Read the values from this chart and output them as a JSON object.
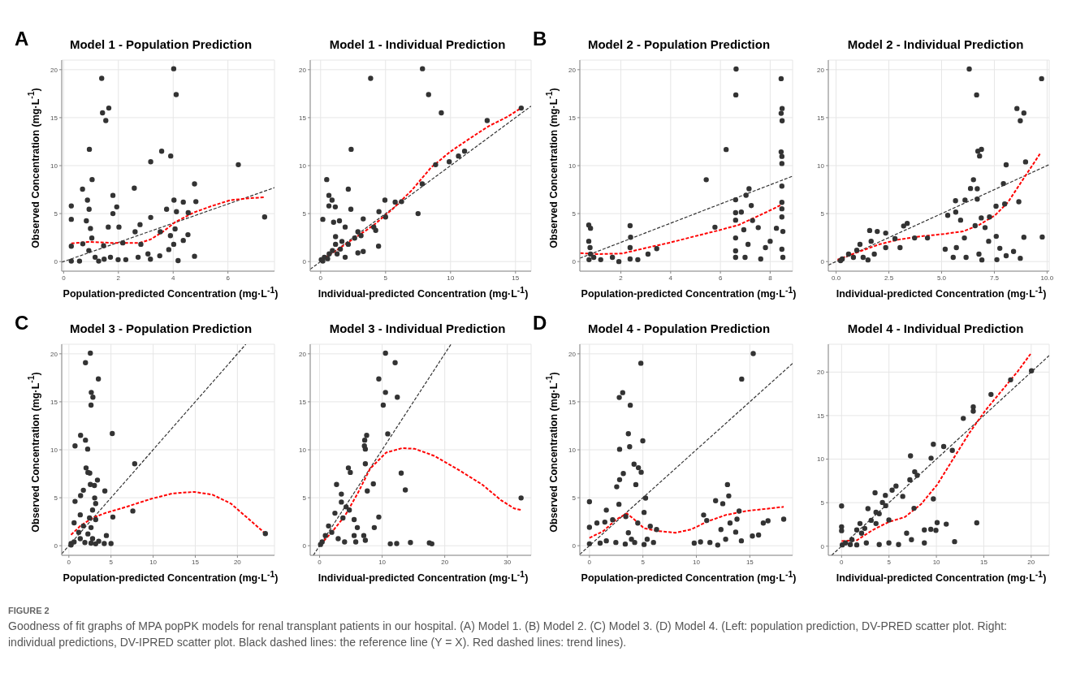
{
  "chart_data": [
    {
      "type": "scatter",
      "title": "Model 1 - Population Prediction",
      "xlabel": "Population-predicted Concentration (mg·L$^{-1}$)",
      "ylabel": "Observed Concentration (mg·L$^{-1}$)",
      "annotations": [
        "A"
      ],
      "xlim": [
        -0.07,
        7.7
      ],
      "ylim": [
        -1,
        21
      ],
      "xticks": [
        0,
        2,
        4,
        6
      ],
      "yticks": [
        0,
        5,
        10,
        15,
        20
      ],
      "grid": true,
      "series": [
        {
          "type": "scatter",
          "marker": "circle",
          "color": "#333333",
          "x": [
            1.39,
            4.02,
            4.11,
            1.65,
            1.42,
            1.54,
            0.94,
            3.58,
            3.91,
            3.18,
            6.38,
            1.04,
            0.69,
            2.58,
            4.78,
            0.87,
            1.8,
            4.03,
            4.37,
            4.83,
            0.28,
            0.93,
            1.94,
            3.76,
            4.12,
            3.18,
            7.34,
            0.28,
            0.83,
            1.8,
            4.55,
            1.63,
            2.79,
            3.53,
            4.07,
            0.98,
            2.02,
            2.61,
            4.54,
            3.9,
            4.37,
            1.03,
            0.28,
            0.7,
            1.46,
            2.16,
            2.82,
            3.08,
            3.84,
            4.02,
            4.78,
            0.92,
            1.15,
            1.48,
            1.71,
            1.99,
            2.27,
            2.72,
            3.17,
            0.58,
            0.28,
            1.28,
            4.18,
            3.51
          ],
          "values": [
            19.1,
            20.1,
            17.4,
            16.0,
            15.5,
            14.7,
            11.7,
            11.5,
            11.0,
            10.4,
            10.1,
            8.55,
            7.55,
            7.65,
            8.1,
            6.4,
            6.9,
            6.4,
            6.2,
            6.25,
            5.8,
            5.45,
            5.7,
            5.45,
            5.2,
            4.6,
            4.65,
            4.4,
            4.25,
            5.0,
            5.1,
            3.6,
            3.85,
            3.1,
            3.4,
            3.45,
            3.6,
            3.1,
            2.8,
            2.7,
            2.2,
            2.45,
            1.6,
            1.85,
            1.65,
            1.95,
            1.8,
            0.8,
            1.25,
            1.8,
            0.55,
            1.15,
            0.45,
            0.25,
            0.45,
            0.2,
            0.2,
            0.45,
            0.25,
            0.05,
            0.05,
            0.05,
            0.1,
            0.6
          ]
        },
        {
          "type": "line",
          "line_style": "dashed",
          "color": "#333333",
          "x": [
            -0.07,
            7.7
          ],
          "values": [
            -0.07,
            7.7
          ]
        },
        {
          "type": "line",
          "line_style": "dashed",
          "color": "#ff0000",
          "x": [
            0.28,
            0.92,
            1.71,
            2.27,
            2.78,
            3.17,
            3.62,
            4.07,
            4.74,
            5.42,
            6.09,
            6.76,
            7.33
          ],
          "values": [
            1.9,
            2.05,
            1.95,
            1.95,
            1.95,
            2.3,
            3.1,
            4.1,
            5.1,
            5.8,
            6.4,
            6.6,
            6.7
          ]
        }
      ]
    },
    {
      "type": "scatter",
      "title": "Model 1 - Individual Prediction",
      "xlabel": "Individual-predicted Concentration (mg·L$^{-1}$)",
      "xlim": [
        -0.8,
        16.2
      ],
      "ylim": [
        -1,
        21
      ],
      "xticks": [
        0,
        5,
        10,
        15
      ],
      "yticks": [
        0,
        5,
        10,
        15,
        20
      ],
      "grid": true,
      "series": [
        {
          "type": "scatter",
          "marker": "circle",
          "color": "#333333",
          "x": [
            7.84,
            3.85,
            8.31,
            9.29,
            15.44,
            12.82,
            2.35,
            11.08,
            10.61,
            9.9,
            8.85,
            0.47,
            2.13,
            7.82,
            0.64,
            0.88,
            4.95,
            5.74,
            6.23,
            0.64,
            1.13,
            2.33,
            4.49,
            7.5,
            5.0,
            3.28,
            0.17,
            1.45,
            1.0,
            4.09,
            4.24,
            1.89,
            2.87,
            3.11,
            4.46,
            1.15,
            1.64,
            2.13,
            2.87,
            3.28,
            1.89,
            1.15,
            0.91,
            0.66,
            0.29,
            1.27,
            0.17,
            0.54,
            0.05,
            1.52,
            2.62
          ],
          "values": [
            20.1,
            19.1,
            17.4,
            15.5,
            16.0,
            14.7,
            11.7,
            11.5,
            11.0,
            10.4,
            10.1,
            8.55,
            7.55,
            8.1,
            6.9,
            6.4,
            6.4,
            6.2,
            6.25,
            5.8,
            5.7,
            5.45,
            5.2,
            5.0,
            4.65,
            4.45,
            4.4,
            4.25,
            4.1,
            3.6,
            3.25,
            3.6,
            3.1,
            2.7,
            1.6,
            2.6,
            2.1,
            1.8,
            0.9,
            1.05,
            0.45,
            1.8,
            1.15,
            0.8,
            0.45,
            0.8,
            0.05,
            0.3,
            0.2,
            1.3,
            2.45
          ]
        },
        {
          "type": "line",
          "line_style": "dashed",
          "color": "#333333",
          "x": [
            -0.8,
            16.2
          ],
          "values": [
            -0.8,
            16.2
          ]
        },
        {
          "type": "line",
          "line_style": "dashed",
          "color": "#ff0000",
          "x": [
            0,
            1.15,
            2.62,
            4.09,
            5.56,
            7.03,
            8.5,
            9.98,
            11.45,
            12.92,
            14.39,
            15.37
          ],
          "values": [
            0.13,
            1.1,
            2.45,
            3.8,
            5.5,
            7.45,
            9.8,
            11.45,
            12.8,
            14.1,
            15.1,
            15.95
          ]
        }
      ]
    },
    {
      "type": "scatter",
      "title": "Model 2 - Population Prediction",
      "xlabel": "Population-predicted Concentration (mg·L$^{-1}$)",
      "ylabel": "Observed Concentration (mg·L$^{-1}$)",
      "annotations": [
        "B"
      ],
      "xlim": [
        0.35,
        8.9
      ],
      "ylim": [
        -1,
        21
      ],
      "xticks": [
        2,
        4,
        6,
        8
      ],
      "yticks": [
        0,
        5,
        10,
        15,
        20
      ],
      "grid": true,
      "series": [
        {
          "type": "scatter",
          "marker": "circle",
          "color": "#333333",
          "x": [
            6.63,
            6.62,
            8.44,
            8.48,
            8.44,
            8.48,
            6.23,
            8.44,
            8.47,
            8.47,
            5.43,
            8.47,
            7.15,
            7.03,
            6.61,
            8.47,
            7.24,
            6.61,
            6.84,
            8.47,
            8.47,
            6.61,
            7.29,
            5.78,
            7.52,
            8.25,
            8.51,
            6.94,
            6.61,
            7.11,
            7.81,
            8.0,
            6.61,
            6.99,
            6.61,
            7.62,
            8.51,
            8.47,
            0.71,
            0.78,
            0.71,
            0.76,
            0.78,
            0.72,
            0.91,
            1.19,
            1.66,
            1.92,
            2.37,
            2.39,
            2.37,
            2.37,
            2.68,
            3.09,
            3.44
          ],
          "values": [
            20.07,
            17.37,
            19.06,
            15.95,
            15.45,
            14.67,
            11.68,
            11.43,
            10.96,
            10.22,
            8.53,
            7.86,
            7.59,
            6.91,
            6.44,
            6.17,
            5.83,
            5.09,
            5.16,
            5.5,
            4.65,
            4.32,
            4.28,
            3.58,
            3.54,
            3.47,
            3.14,
            3.31,
            2.46,
            1.79,
            1.45,
            2.12,
            1.11,
            0.44,
            0.44,
            0.27,
            0.44,
            1.28,
            3.81,
            3.47,
            2.12,
            1.45,
            0.78,
            0.2,
            0.44,
            0.2,
            0.44,
            0.0,
            3.74,
            2.53,
            1.45,
            0.27,
            0.2,
            0.78,
            1.35
          ]
        },
        {
          "type": "line",
          "line_style": "dashed",
          "color": "#333333",
          "x": [
            0.35,
            8.9
          ],
          "values": [
            0.35,
            8.9
          ]
        },
        {
          "type": "line",
          "line_style": "dashed",
          "color": "#ff0000",
          "x": [
            0.37,
            1.04,
            2.05,
            3.06,
            3.95,
            4.96,
            5.85,
            6.73,
            7.49,
            8.13,
            8.47
          ],
          "values": [
            0.88,
            0.78,
            0.84,
            1.45,
            1.96,
            2.63,
            3.2,
            3.81,
            4.72,
            5.5,
            5.94
          ]
        }
      ]
    },
    {
      "type": "scatter",
      "title": "Model 2 - Individual Prediction",
      "xlabel": "Individual-predicted Concentration (mg·L$^{-1}$)",
      "xlim": [
        -0.37,
        10.1
      ],
      "ylim": [
        -1,
        21
      ],
      "xticks": [
        {
          "value": 0,
          "label": "0.0"
        },
        {
          "value": 2.5,
          "label": "2.5"
        },
        {
          "value": 5,
          "label": "5.0"
        },
        {
          "value": 7.5,
          "label": "7.5"
        },
        {
          "value": 10,
          "label": "10.0"
        }
      ],
      "yticks": [
        0,
        5,
        10,
        15,
        20
      ],
      "grid": true,
      "series": [
        {
          "type": "scatter",
          "marker": "circle",
          "color": "#333333",
          "x": [
            6.31,
            9.74,
            6.66,
            8.57,
            8.9,
            8.73,
            6.72,
            6.89,
            6.8,
            8.98,
            8.06,
            6.51,
            6.37,
            6.69,
            7.93,
            8.66,
            6.11,
            5.66,
            6.69,
            7.58,
            7.99,
            5.67,
            5.9,
            6.88,
            7.27,
            5.29,
            6.59,
            3.37,
            3.2,
            7.06,
            7.59,
            8.9,
            9.77,
            7.23,
            7.76,
            8.06,
            8.41,
            8.73,
            6.08,
            5.7,
            6.16,
            5.55,
            6.91,
            6.77,
            7.62,
            5.17,
            4.33,
            3.72,
            2.79,
            3.03,
            2.35,
            1.95,
            1.59,
            1.66,
            1.13,
            0.98,
            1.28,
            1.51,
            1.81,
            2.35,
            0.59,
            0.29,
            0.21,
            0.82
          ],
          "values": [
            20.07,
            19.06,
            17.37,
            15.95,
            15.48,
            14.67,
            11.5,
            11.7,
            11.0,
            10.39,
            10.08,
            8.53,
            7.62,
            7.59,
            8.13,
            6.24,
            6.41,
            6.34,
            6.51,
            5.77,
            6.0,
            5.16,
            4.32,
            4.55,
            4.65,
            4.82,
            3.74,
            3.98,
            3.71,
            3.54,
            2.63,
            2.53,
            2.56,
            2.12,
            1.38,
            0.61,
            1.05,
            0.34,
            2.46,
            1.45,
            0.44,
            0.44,
            0.17,
            0.78,
            0.2,
            1.28,
            2.46,
            2.46,
            2.39,
            1.45,
            2.97,
            3.14,
            3.24,
            2.12,
            1.79,
            1.18,
            0.44,
            0.17,
            0.78,
            1.45,
            0.78,
            0.27,
            0.1,
            0.44
          ]
        },
        {
          "type": "line",
          "line_style": "dashed",
          "color": "#333333",
          "x": [
            -0.37,
            10.1
          ],
          "values": [
            -0.37,
            10.1
          ]
        },
        {
          "type": "line",
          "line_style": "dashed",
          "color": "#ff0000",
          "x": [
            0.06,
            0.98,
            2.04,
            2.96,
            4.02,
            5.09,
            6.01,
            6.77,
            7.53,
            8.14,
            8.75,
            9.36,
            9.66
          ],
          "values": [
            0.2,
            0.94,
            1.79,
            2.29,
            2.63,
            2.87,
            3.14,
            3.81,
            4.82,
            6.17,
            8.2,
            10.22,
            11.23
          ]
        }
      ]
    },
    {
      "type": "scatter",
      "title": "Model 3 - Population Prediction",
      "xlabel": "Population-predicted Concentration (mg·L$^{-1}$)",
      "ylabel": "Observed Concentration (mg·L$^{-1}$)",
      "annotations": [
        "C"
      ],
      "xlim": [
        -0.85,
        24.4
      ],
      "ylim": [
        -1,
        21
      ],
      "xticks": [
        0,
        5,
        10,
        15,
        20
      ],
      "yticks": [
        0,
        5,
        10,
        15,
        20
      ],
      "grid": true,
      "series": [
        {
          "type": "scatter",
          "marker": "circle",
          "color": "#333333",
          "x": [
            2.55,
            1.97,
            3.5,
            2.66,
            2.85,
            2.63,
            5.15,
            1.39,
            1.97,
            0.73,
            2.23,
            7.81,
            2.04,
            2.26,
            2.48,
            3.39,
            2.55,
            3.03,
            4.27,
            1.72,
            1.39,
            3.06,
            0.73,
            3.18,
            7.59,
            5.22,
            2.81,
            1.35,
            2.45,
            3.18,
            0.62,
            1.72,
            2.63,
            1.17,
            2.26,
            4.45,
            1.35,
            2.81,
            3.54,
            4.2,
            5.0,
            0.26,
            0.62,
            1.9,
            2.63,
            3.18,
            23.32,
            0.26
          ],
          "values": [
            20.07,
            19.07,
            17.38,
            15.98,
            15.48,
            14.65,
            11.69,
            11.5,
            11.0,
            10.4,
            10.07,
            8.54,
            8.11,
            7.64,
            7.57,
            6.84,
            6.38,
            6.28,
            5.71,
            5.78,
            5.22,
            4.98,
            4.62,
            4.39,
            3.62,
            2.99,
            3.72,
            3.22,
            2.89,
            2.72,
            2.39,
            2.06,
            1.89,
            1.4,
            1.23,
            1.06,
            0.73,
            0.73,
            0.47,
            0.23,
            0.23,
            0.23,
            0.4,
            0.33,
            0.27,
            0.2,
            1.26,
            0.07
          ]
        },
        {
          "type": "line",
          "line_style": "dashed",
          "color": "#333333",
          "x": [
            -0.85,
            21
          ],
          "values": [
            -0.85,
            21
          ]
        },
        {
          "type": "line",
          "line_style": "dashed",
          "color": "#ff0000",
          "x": [
            0.26,
            1.35,
            2.81,
            4.27,
            6.82,
            9.74,
            12.3,
            14.85,
            17.04,
            19.23,
            21.42,
            23.32
          ],
          "values": [
            1.13,
            2.06,
            2.89,
            3.39,
            4.05,
            4.88,
            5.45,
            5.61,
            5.32,
            4.39,
            2.72,
            1.26
          ]
        }
      ]
    },
    {
      "type": "scatter",
      "title": "Model 3 - Individual Prediction",
      "xlabel": "Individual-predicted Concentration (mg·L$^{-1}$)",
      "xlim": [
        -1.5,
        33.8
      ],
      "ylim": [
        -1,
        21
      ],
      "xticks": [
        0,
        10,
        20,
        30
      ],
      "yticks": [
        0,
        5,
        10,
        15,
        20
      ],
      "grid": true,
      "series": [
        {
          "type": "scatter",
          "marker": "circle",
          "color": "#333333",
          "x": [
            10.53,
            12.07,
            9.46,
            10.53,
            12.42,
            10.17,
            10.89,
            7.52,
            7.21,
            7.16,
            7.31,
            7.31,
            4.6,
            4.91,
            13.04,
            13.7,
            8.59,
            7.62,
            32.2,
            9.46,
            8.74,
            7.06,
            7.31,
            11.3,
            12.32,
            14.52,
            17.54,
            17.94,
            5.78,
            3.99,
            5.52,
            6.03,
            5.52,
            4.24,
            3.48,
            2.71,
            3.48,
            2.45,
            1.43,
            1.94,
            0.92,
            0.41,
            0.15,
            2.97,
            4.75,
            3.73
          ],
          "values": [
            20.07,
            19.07,
            17.38,
            15.98,
            15.48,
            14.65,
            11.66,
            11.5,
            11.0,
            10.4,
            10.07,
            8.54,
            8.11,
            7.64,
            7.57,
            5.81,
            6.45,
            5.71,
            4.98,
            2.99,
            1.89,
            1.06,
            0.56,
            0.2,
            0.23,
            0.33,
            0.3,
            0.2,
            0.4,
            0.4,
            1.06,
            1.89,
            2.72,
            4.05,
            5.38,
            6.38,
            4.55,
            3.39,
            2.06,
            1.4,
            1.06,
            0.4,
            0.13,
            0.73,
            3.72,
            2.89
          ]
        },
        {
          "type": "line",
          "line_style": "dashed",
          "color": "#333333",
          "x": [
            -1,
            21
          ],
          "values": [
            -1,
            21
          ]
        },
        {
          "type": "line",
          "line_style": "dashed",
          "color": "#ff0000",
          "x": [
            0.15,
            1.94,
            3.99,
            6.03,
            8.08,
            10.63,
            13.19,
            15.23,
            18.3,
            21.88,
            25.97,
            29.04,
            31.08,
            32.21
          ],
          "values": [
            0.13,
            1.4,
            3.06,
            5.38,
            8.04,
            9.7,
            10.17,
            10.1,
            9.37,
            8.04,
            6.38,
            4.72,
            3.89,
            3.72
          ]
        }
      ]
    },
    {
      "type": "scatter",
      "title": "Model 4 - Population Prediction",
      "xlabel": "Population-predicted Concentration (mg·L$^{-1}$)",
      "ylabel": "Observed Concentration (mg·L$^{-1}$)",
      "annotations": [
        "D"
      ],
      "xlim": [
        -0.9,
        19
      ],
      "ylim": [
        -1,
        21
      ],
      "xticks": [
        0,
        5,
        10,
        15
      ],
      "yticks": [
        0,
        5,
        10,
        15,
        20
      ],
      "grid": true,
      "series": [
        {
          "type": "scatter",
          "marker": "circle",
          "color": "#333333",
          "x": [
            15.32,
            4.81,
            14.24,
            3.11,
            2.79,
            3.82,
            3.64,
            4.99,
            2.82,
            3.76,
            4.17,
            4.58,
            4.84,
            3.17,
            2.82,
            2.55,
            4.34,
            12.91,
            13.03,
            0,
            2.76,
            5.25,
            11.8,
            12.47,
            1.58,
            5.11,
            10.68,
            14.0,
            13.8,
            13.15,
            10.97,
            16.26,
            16.7,
            18.17,
            0,
            0.7,
            1.44,
            2.17,
            3.4,
            4.52,
            5.69,
            6.28,
            12.3,
            13.68,
            14.21,
            12.74,
            15.24,
            15.82,
            9.8,
            11.27,
            12.0,
            10.39,
            0,
            1.0,
            1.58,
            2.47,
            3.35,
            4.23,
            5.11,
            5.99,
            3.93,
            5.4,
            3.64
          ],
          "values": [
            20.03,
            19.02,
            17.37,
            15.95,
            15.45,
            14.64,
            11.67,
            10.93,
            10.05,
            10.32,
            8.5,
            8.13,
            7.66,
            7.52,
            6.88,
            6.14,
            6.37,
            6.37,
            5.19,
            4.59,
            4.32,
            4.96,
            4.69,
            4.38,
            3.71,
            3.47,
            3.2,
            3.61,
            2.77,
            2.36,
            2.63,
            2.36,
            2.6,
            2.77,
            1.92,
            2.36,
            2.46,
            2.7,
            3.04,
            2.36,
            2.02,
            1.69,
            1.69,
            1.42,
            0.51,
            0.67,
            1.01,
            1.11,
            0.27,
            0.34,
            0.07,
            0.4,
            0.2,
            0.27,
            0.51,
            0.34,
            0.17,
            0.34,
            0.13,
            0.34,
            0.67,
            0.67,
            1.35
          ]
        },
        {
          "type": "line",
          "line_style": "dashed",
          "color": "#333333",
          "x": [
            -0.9,
            19
          ],
          "values": [
            -0.9,
            19
          ]
        },
        {
          "type": "line",
          "line_style": "dashed",
          "color": "#ff0000",
          "x": [
            0,
            1.29,
            2.47,
            3.49,
            4.23,
            5.11,
            6.28,
            8.04,
            9.51,
            10.98,
            12.74,
            14.79,
            16.85,
            18.17
          ],
          "values": [
            0.81,
            1.52,
            2.7,
            3.37,
            2.7,
            1.82,
            1.55,
            1.35,
            1.69,
            2.5,
            3.2,
            3.64,
            3.88,
            4.05
          ]
        }
      ]
    },
    {
      "type": "scatter",
      "title": "Model 4 - Individual Prediction",
      "xlabel": "Individual-predicted Concentration (mg·L$^{-1}$)",
      "xlim": [
        -1.4,
        21.9
      ],
      "ylim": [
        -1.05,
        23.2
      ],
      "xticks": [
        0,
        5,
        10,
        15,
        20
      ],
      "yticks": [
        0,
        5,
        10,
        15,
        20
      ],
      "grid": true,
      "series": [
        {
          "type": "scatter",
          "marker": "circle",
          "color": "#333333",
          "x": [
            20.03,
            17.83,
            15.76,
            13.89,
            13.89,
            12.84,
            9.68,
            10.77,
            11.68,
            7.27,
            9.44,
            7.71,
            7.2,
            7.98,
            5.74,
            5.33,
            3.53,
            4.62,
            6.45,
            9.68,
            4.31,
            0,
            2.78,
            3.63,
            1.94,
            1.6,
            0,
            0,
            7.64,
            3.63,
            4.99,
            10.08,
            11.04,
            14.26,
            9.41,
            9.95,
            8.73,
            6.86,
            7.37,
            11.92,
            8.73,
            6.01,
            4.99,
            3.97,
            2.61,
            1.6,
            0.92,
            0.41,
            0.07,
            1.09,
            2.11,
            2.44,
            3.12,
            3.97,
            4.65
          ],
          "values": [
            20.15,
            19.11,
            17.43,
            15.99,
            15.5,
            14.68,
            11.71,
            11.45,
            11.0,
            10.37,
            10.11,
            8.55,
            7.62,
            8.14,
            6.91,
            6.43,
            6.13,
            5.84,
            5.72,
            5.43,
            5.02,
            4.61,
            4.31,
            3.9,
            2.6,
            1.86,
            2.23,
            1.78,
            4.35,
            2.6,
            3.01,
            2.71,
            2.53,
            2.68,
            1.93,
            1.82,
            1.86,
            1.49,
            0.74,
            0.52,
            0.37,
            0.19,
            0.37,
            0.19,
            0.37,
            0.15,
            0.19,
            0.37,
            0.15,
            0.74,
            1.49,
            2.04,
            2.97,
            3.72,
            4.65
          ]
        },
        {
          "type": "line",
          "line_style": "dashed",
          "color": "#333333",
          "x": [
            -1.05,
            21.9
          ],
          "values": [
            -1.05,
            21.9
          ]
        },
        {
          "type": "line",
          "line_style": "dashed",
          "color": "#ff0000",
          "x": [
            0,
            1.6,
            3.29,
            4.99,
            6.69,
            8.39,
            10.08,
            11.78,
            13.48,
            15.18,
            16.88,
            18.57,
            19.93
          ],
          "values": [
            0.59,
            0.67,
            1.86,
            2.79,
            3.35,
            4.83,
            7.06,
            10.04,
            13.01,
            15.61,
            17.84,
            20.07,
            22.08
          ]
        }
      ]
    },
    {
      "type": "other",
      "title": "FIGURE 2",
      "annotations": [
        "Goodness of fit graphs of MPA popPK models for renal transplant patients in our hospital. (A) Model 1. (B) Model 2. (C) Model 3. (D) Model 4. (Left: population prediction, DV-PRED scatter plot. Right: individual predictions, DV-IPRED scatter plot. Black dashed lines: the reference line (Y = X). Red dashed lines: trend lines)."
      ]
    }
  ]
}
